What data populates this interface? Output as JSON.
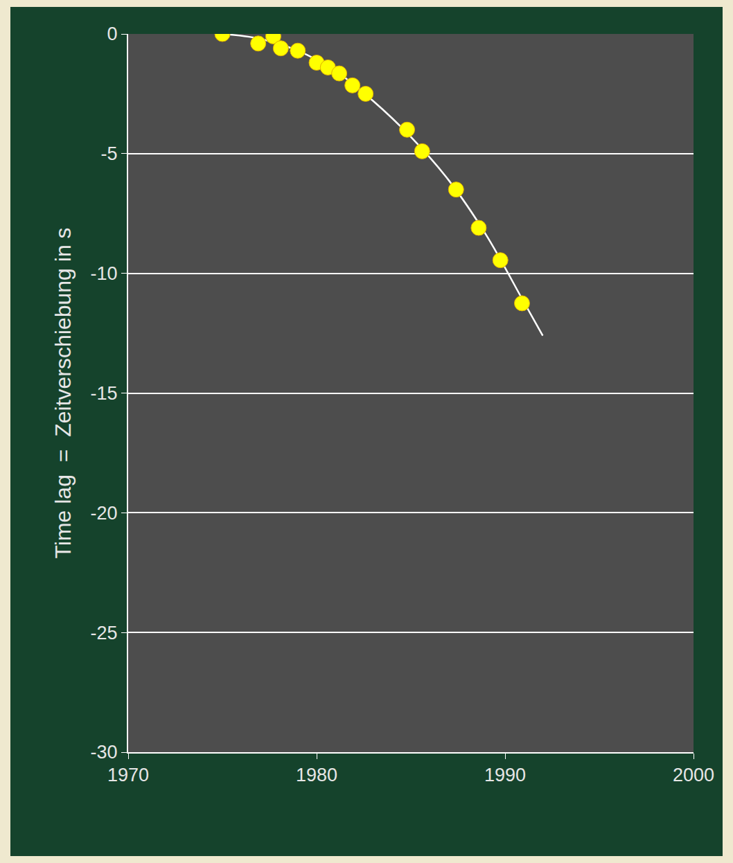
{
  "chart_data": {
    "type": "scatter",
    "y_label": "Time lag  =  Zeitverschiebung in s",
    "xlim": [
      1970,
      2000
    ],
    "xticks": [
      1970,
      1980,
      1990,
      2000
    ],
    "ylim": [
      -30,
      0
    ],
    "yticks": [
      -30,
      -25,
      -20,
      -15,
      -10,
      -5,
      0
    ],
    "grid": true,
    "series": [
      {
        "type": "line",
        "color": "#ffffff",
        "line_style": "solid",
        "x": [
          1975,
          1977,
          1979,
          1981,
          1983,
          1985,
          1987,
          1989,
          1991,
          1992
        ],
        "values": [
          0,
          -0.2,
          -0.7,
          -1.55,
          -2.8,
          -4.3,
          -6.1,
          -8.4,
          -11.2,
          -12.6
        ]
      },
      {
        "type": "scatter",
        "color": "#ffff00",
        "marker": "circle",
        "x": [
          1975.0,
          1976.9,
          1977.7,
          1978.1,
          1979.0,
          1980.0,
          1980.6,
          1981.2,
          1981.9,
          1982.6,
          1984.8,
          1985.6,
          1987.4,
          1988.6,
          1989.75,
          1990.9
        ],
        "values": [
          0,
          -0.4,
          -0.1,
          -0.6,
          -0.7,
          -1.2,
          -1.4,
          -1.65,
          -2.15,
          -2.5,
          -4.0,
          -4.9,
          -6.5,
          -8.1,
          -9.45,
          -11.25
        ]
      }
    ]
  }
}
